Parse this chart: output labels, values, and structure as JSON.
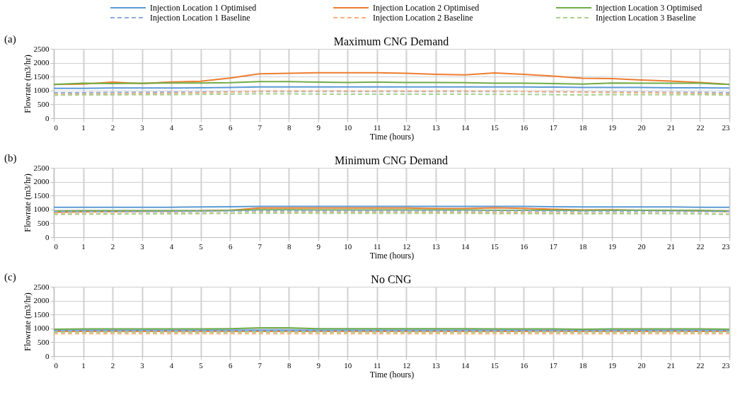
{
  "chart_data": [
    {
      "type": "line",
      "title": "Maximum CNG Demand",
      "xlabel": "Time (hours)",
      "ylabel": "Flowrate (m3/hr)",
      "annotations": [
        "(a)"
      ],
      "legend": "top",
      "grid": true,
      "x": [
        0,
        1,
        2,
        3,
        4,
        5,
        6,
        7,
        8,
        9,
        10,
        11,
        12,
        13,
        14,
        15,
        16,
        17,
        18,
        19,
        20,
        21,
        22,
        23
      ],
      "xlim": [
        0,
        23
      ],
      "xticks": [
        0,
        1,
        2,
        3,
        4,
        5,
        6,
        7,
        8,
        9,
        10,
        11,
        12,
        13,
        14,
        15,
        16,
        17,
        18,
        19,
        20,
        21,
        22,
        23
      ],
      "ylim": [
        0,
        2500
      ],
      "yticks": [
        0,
        500,
        1000,
        1500,
        2000,
        2500
      ],
      "series": [
        {
          "name": "Injection Location 1 Optimised",
          "color": "#5b9bd5",
          "line_style": "solid",
          "values": [
            1080,
            1080,
            1090,
            1090,
            1090,
            1100,
            1110,
            1130,
            1130,
            1130,
            1130,
            1130,
            1130,
            1130,
            1130,
            1130,
            1130,
            1120,
            1110,
            1110,
            1110,
            1100,
            1100,
            1090
          ]
        },
        {
          "name": "Injection Location 2 Optimised",
          "color": "#ed7d31",
          "line_style": "solid",
          "values": [
            1220,
            1230,
            1300,
            1250,
            1310,
            1330,
            1450,
            1600,
            1620,
            1640,
            1640,
            1640,
            1620,
            1580,
            1560,
            1630,
            1580,
            1520,
            1440,
            1430,
            1380,
            1340,
            1290,
            1220
          ]
        },
        {
          "name": "Injection Location 3 Optimised",
          "color": "#70ad47",
          "line_style": "solid",
          "values": [
            1220,
            1260,
            1250,
            1260,
            1270,
            1270,
            1280,
            1320,
            1320,
            1300,
            1290,
            1300,
            1290,
            1290,
            1280,
            1260,
            1260,
            1250,
            1230,
            1270,
            1260,
            1260,
            1260,
            1220
          ]
        },
        {
          "name": "Injection Location 1 Baseline",
          "color": "#8faadc",
          "line_style": "dashed",
          "values": [
            920,
            920,
            930,
            930,
            940,
            940,
            950,
            960,
            960,
            960,
            960,
            960,
            960,
            960,
            960,
            960,
            960,
            950,
            940,
            940,
            940,
            930,
            930,
            920
          ]
        },
        {
          "name": "Injection Location 2 Baseline",
          "color": "#f4b183",
          "line_style": "dashed",
          "values": [
            860,
            870,
            880,
            890,
            900,
            920,
            940,
            980,
            980,
            980,
            980,
            980,
            980,
            980,
            980,
            980,
            970,
            960,
            940,
            930,
            920,
            910,
            890,
            870
          ]
        },
        {
          "name": "Injection Location 3 Baseline",
          "color": "#a9d18e",
          "line_style": "dashed",
          "values": [
            830,
            840,
            840,
            850,
            850,
            860,
            870,
            880,
            880,
            870,
            870,
            870,
            870,
            870,
            870,
            860,
            860,
            850,
            840,
            850,
            850,
            850,
            850,
            830
          ]
        }
      ]
    },
    {
      "type": "line",
      "title": "Minimum CNG Demand",
      "xlabel": "Time (hours)",
      "ylabel": "Flowrate (m3/hr)",
      "annotations": [
        "(b)"
      ],
      "legend": false,
      "grid": true,
      "x": [
        0,
        1,
        2,
        3,
        4,
        5,
        6,
        7,
        8,
        9,
        10,
        11,
        12,
        13,
        14,
        15,
        16,
        17,
        18,
        19,
        20,
        21,
        22,
        23
      ],
      "xlim": [
        0,
        23
      ],
      "xticks": [
        0,
        1,
        2,
        3,
        4,
        5,
        6,
        7,
        8,
        9,
        10,
        11,
        12,
        13,
        14,
        15,
        16,
        17,
        18,
        19,
        20,
        21,
        22,
        23
      ],
      "ylim": [
        0,
        2500
      ],
      "yticks": [
        0,
        500,
        1000,
        1500,
        2000,
        2500
      ],
      "series": [
        {
          "color": "#5b9bd5",
          "line_style": "solid",
          "values": [
            1080,
            1080,
            1080,
            1080,
            1080,
            1090,
            1100,
            1110,
            1110,
            1110,
            1110,
            1110,
            1110,
            1110,
            1110,
            1110,
            1110,
            1100,
            1090,
            1090,
            1090,
            1090,
            1080,
            1080
          ]
        },
        {
          "color": "#ed7d31",
          "line_style": "solid",
          "values": [
            900,
            910,
            920,
            930,
            940,
            950,
            970,
            1050,
            1050,
            1050,
            1050,
            1050,
            1050,
            1030,
            1030,
            1060,
            1040,
            1010,
            980,
            990,
            970,
            960,
            950,
            920
          ]
        },
        {
          "color": "#70ad47",
          "line_style": "solid",
          "values": [
            940,
            950,
            950,
            950,
            950,
            950,
            960,
            990,
            990,
            980,
            980,
            980,
            980,
            980,
            980,
            970,
            970,
            970,
            960,
            970,
            970,
            960,
            960,
            940
          ]
        },
        {
          "color": "#8faadc",
          "line_style": "dashed",
          "values": [
            920,
            920,
            920,
            920,
            920,
            930,
            940,
            950,
            950,
            950,
            950,
            950,
            950,
            950,
            950,
            950,
            950,
            940,
            930,
            930,
            930,
            930,
            920,
            920
          ]
        },
        {
          "color": "#f4b183",
          "line_style": "dashed",
          "values": [
            830,
            840,
            850,
            850,
            860,
            860,
            870,
            890,
            890,
            890,
            890,
            890,
            890,
            890,
            890,
            890,
            890,
            880,
            870,
            870,
            870,
            860,
            850,
            830
          ]
        },
        {
          "color": "#a9d18e",
          "line_style": "dashed",
          "values": [
            820,
            830,
            830,
            840,
            840,
            850,
            860,
            870,
            870,
            860,
            860,
            860,
            860,
            860,
            860,
            850,
            850,
            850,
            840,
            850,
            850,
            850,
            840,
            820
          ]
        }
      ]
    },
    {
      "type": "line",
      "title": "No CNG",
      "xlabel": "Time (hours)",
      "ylabel": "Flowrate (m3/hr)",
      "annotations": [
        "(c)"
      ],
      "legend": false,
      "grid": true,
      "x": [
        0,
        1,
        2,
        3,
        4,
        5,
        6,
        7,
        8,
        9,
        10,
        11,
        12,
        13,
        14,
        15,
        16,
        17,
        18,
        19,
        20,
        21,
        22,
        23
      ],
      "xlim": [
        0,
        23
      ],
      "xticks": [
        0,
        1,
        2,
        3,
        4,
        5,
        6,
        7,
        8,
        9,
        10,
        11,
        12,
        13,
        14,
        15,
        16,
        17,
        18,
        19,
        20,
        21,
        22,
        23
      ],
      "ylim": [
        0,
        2500
      ],
      "yticks": [
        0,
        500,
        1000,
        1500,
        2000,
        2500
      ],
      "series": [
        {
          "color": "#5b9bd5",
          "line_style": "solid",
          "values": [
            940,
            940,
            940,
            940,
            940,
            940,
            940,
            940,
            940,
            940,
            940,
            940,
            940,
            940,
            940,
            940,
            940,
            940,
            940,
            940,
            940,
            940,
            940,
            940
          ]
        },
        {
          "color": "#ed7d31",
          "line_style": "solid",
          "values": [
            890,
            890,
            890,
            890,
            890,
            890,
            890,
            890,
            890,
            890,
            890,
            890,
            890,
            890,
            890,
            890,
            890,
            890,
            890,
            890,
            890,
            890,
            890,
            890
          ]
        },
        {
          "color": "#70ad47",
          "line_style": "solid",
          "values": [
            970,
            980,
            980,
            980,
            980,
            980,
            990,
            1020,
            1020,
            990,
            990,
            990,
            990,
            990,
            990,
            980,
            980,
            980,
            970,
            980,
            980,
            980,
            980,
            970
          ]
        },
        {
          "color": "#8faadc",
          "line_style": "dashed",
          "values": [
            910,
            910,
            910,
            910,
            910,
            910,
            910,
            910,
            910,
            910,
            910,
            910,
            910,
            910,
            910,
            910,
            910,
            910,
            910,
            910,
            910,
            910,
            910,
            910
          ]
        },
        {
          "color": "#f4b183",
          "line_style": "dashed",
          "values": [
            810,
            810,
            810,
            810,
            810,
            810,
            810,
            810,
            810,
            810,
            810,
            810,
            810,
            810,
            810,
            810,
            810,
            810,
            810,
            810,
            810,
            810,
            810,
            810
          ]
        },
        {
          "color": "#a9d18e",
          "line_style": "dashed",
          "values": [
            860,
            860,
            860,
            860,
            860,
            860,
            860,
            870,
            870,
            860,
            860,
            860,
            860,
            860,
            860,
            860,
            860,
            860,
            860,
            860,
            860,
            860,
            860,
            860
          ]
        }
      ]
    }
  ]
}
